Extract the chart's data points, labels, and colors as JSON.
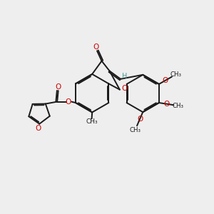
{
  "bg_color": "#eeeeee",
  "bond_color": "#1a1a1a",
  "oxygen_color": "#cc0000",
  "h_color": "#4a9999",
  "lw": 1.4,
  "dbgap": 0.055,
  "xlim": [
    0,
    10
  ],
  "ylim": [
    0,
    10
  ]
}
